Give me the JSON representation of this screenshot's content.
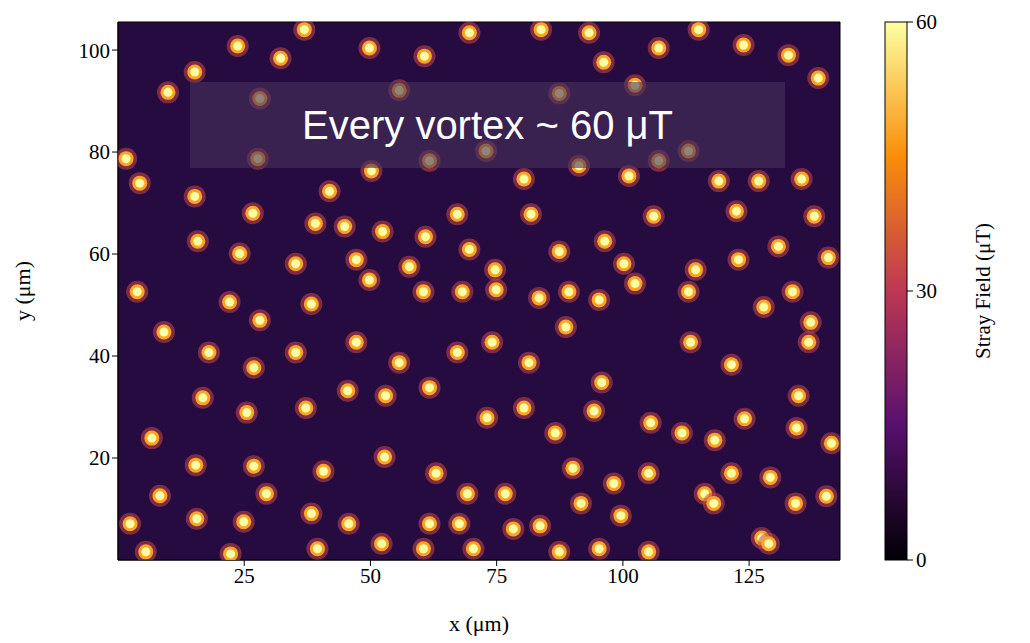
{
  "chart_data": {
    "type": "scatter",
    "x_label": "x (μm)",
    "y_label": "y (μm)",
    "annotation": "Every vortex ~ 60 μT",
    "x": [
      9.9,
      23.7,
      32.2,
      36.9,
      49.8,
      60.7,
      69.6,
      83.8,
      93.3,
      107.1,
      115.0,
      123.9,
      132.8,
      138.7,
      55.7,
      28.1,
      96.2,
      102.4,
      87.4,
      15.2,
      1.6,
      4.3,
      15.2,
      27.7,
      41.9,
      50.2,
      61.7,
      72.9,
      80.4,
      91.3,
      101.2,
      107.1,
      113.0,
      119.0,
      126.9,
      135.4,
      137.9,
      26.7,
      39.1,
      44.9,
      52.4,
      60.9,
      67.2,
      81.8,
      96.4,
      106.1,
      122.5,
      15.8,
      24.1,
      35.2,
      47.2,
      57.7,
      69.6,
      74.7,
      87.4,
      100.2,
      114.4,
      122.9,
      130.8,
      140.7,
      3.8,
      22.1,
      28.1,
      38.3,
      49.8,
      60.5,
      68.2,
      74.9,
      83.4,
      89.3,
      95.3,
      102.4,
      113.0,
      127.9,
      133.6,
      137.2,
      9.1,
      18.0,
      26.9,
      35.2,
      47.2,
      55.7,
      67.2,
      74.1,
      81.4,
      88.7,
      95.8,
      113.4,
      121.5,
      136.8,
      134.8,
      16.8,
      25.5,
      37.2,
      45.5,
      53.0,
      61.7,
      73.1,
      80.4,
      86.6,
      94.3,
      105.5,
      111.7,
      118.2,
      124.1,
      134.4,
      141.3,
      6.7,
      15.4,
      26.9,
      29.4,
      40.7,
      52.8,
      63.0,
      69.2,
      76.7,
      90.1,
      98.2,
      105.1,
      116.2,
      121.5,
      129.2,
      140.3,
      2.4,
      8.3,
      15.6,
      24.9,
      38.3,
      45.7,
      52.2,
      61.7,
      67.6,
      78.3,
      83.6,
      91.7,
      99.6,
      118.0,
      127.5,
      134.2,
      5.5,
      22.3,
      39.5,
      60.5,
      70.4,
      87.4,
      95.3,
      105.1,
      128.9
    ],
    "y": [
      91.7,
      100.8,
      98.4,
      104.0,
      100.4,
      98.8,
      103.4,
      104.0,
      103.4,
      100.4,
      104.0,
      101.0,
      99.0,
      94.5,
      92.1,
      90.5,
      97.6,
      93.1,
      91.5,
      95.7,
      78.7,
      73.9,
      71.3,
      78.7,
      72.3,
      76.3,
      78.3,
      80.2,
      74.7,
      77.3,
      75.3,
      78.3,
      80.2,
      74.3,
      74.3,
      74.7,
      67.4,
      68.0,
      66.0,
      65.4,
      64.4,
      63.4,
      67.8,
      67.8,
      62.5,
      67.4,
      68.4,
      62.5,
      60.1,
      58.1,
      58.9,
      57.5,
      60.9,
      56.9,
      60.5,
      58.1,
      56.9,
      58.9,
      61.5,
      59.3,
      52.6,
      50.6,
      47.0,
      50.2,
      54.9,
      52.6,
      52.6,
      53.0,
      51.4,
      52.6,
      51.0,
      54.2,
      52.6,
      49.6,
      52.6,
      46.6,
      44.7,
      40.7,
      37.7,
      40.7,
      42.7,
      38.7,
      40.7,
      42.7,
      38.7,
      45.7,
      34.8,
      42.7,
      38.3,
      42.7,
      32.2,
      31.8,
      28.9,
      29.8,
      33.2,
      32.2,
      33.8,
      27.9,
      29.8,
      24.9,
      29.2,
      26.9,
      24.9,
      23.5,
      27.7,
      25.9,
      22.9,
      23.9,
      18.6,
      18.4,
      13.0,
      17.4,
      20.2,
      17.0,
      13.0,
      13.0,
      18.0,
      15.0,
      17.0,
      13.0,
      17.0,
      16.2,
      12.5,
      7.1,
      12.6,
      8.1,
      7.5,
      9.1,
      7.1,
      3.2,
      7.1,
      7.1,
      6.1,
      6.7,
      11.1,
      8.7,
      11.1,
      4.3,
      11.1,
      1.6,
      1.2,
      2.2,
      2.2,
      2.2,
      1.6,
      2.2,
      1.6,
      3.2
    ],
    "values": [
      60,
      60,
      60,
      60,
      60,
      60,
      60,
      60,
      60,
      60,
      60,
      60,
      60,
      60,
      60,
      60,
      60,
      60,
      60,
      60,
      60,
      60,
      60,
      60,
      60,
      60,
      60,
      60,
      60,
      60,
      60,
      60,
      60,
      60,
      60,
      60,
      60,
      60,
      60,
      60,
      60,
      60,
      60,
      60,
      60,
      60,
      60,
      60,
      60,
      60,
      60,
      60,
      60,
      60,
      60,
      60,
      60,
      60,
      60,
      60,
      60,
      60,
      60,
      60,
      60,
      60,
      60,
      60,
      60,
      60,
      60,
      60,
      60,
      60,
      60,
      60,
      60,
      60,
      60,
      60,
      60,
      60,
      60,
      60,
      60,
      60,
      60,
      60,
      60,
      60,
      60,
      60,
      60,
      60,
      60,
      60,
      60,
      60,
      60,
      60,
      60,
      60,
      60,
      60,
      60,
      60,
      60,
      60,
      60,
      60,
      60,
      60,
      60,
      60,
      60,
      60,
      60,
      60,
      60,
      60,
      60,
      60,
      60,
      60,
      60,
      60,
      60,
      60,
      60,
      60,
      60,
      60,
      60,
      60,
      60,
      60,
      60,
      60,
      60,
      60,
      60,
      60,
      60,
      60,
      60,
      60,
      60,
      60
    ],
    "xlim": [
      0,
      143
    ],
    "ylim": [
      0,
      105.5
    ],
    "xticks": [
      25,
      50,
      75,
      100,
      125
    ],
    "yticks": [
      20,
      40,
      60,
      80,
      100
    ],
    "grid": false,
    "colorbar": {
      "range": [
        0,
        60
      ],
      "ticks": [
        0,
        30,
        60
      ],
      "label": "Stray Field (μT)"
    }
  }
}
